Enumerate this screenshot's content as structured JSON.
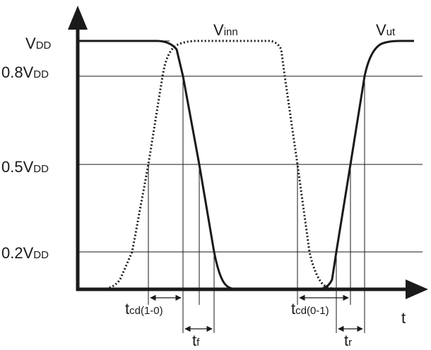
{
  "diagram": {
    "levels": [
      {
        "main": "V",
        "sub": "DD"
      },
      {
        "main": "0.8V",
        "sub": "DD"
      },
      {
        "main": "0.5V",
        "sub": "DD"
      },
      {
        "main": "0.2V",
        "sub": "DD"
      }
    ],
    "signals": {
      "input": {
        "main": "V",
        "sub": "inn"
      },
      "output": {
        "main": "V",
        "sub": "ut"
      }
    },
    "time_axis": "t",
    "intervals": {
      "tcd_fall": {
        "main": "t",
        "sub": "cd(1-0)"
      },
      "tf": {
        "main": "t",
        "sub": "f"
      },
      "tcd_rise": {
        "main": "t",
        "sub": "cd(0-1)"
      },
      "tr": {
        "main": "t",
        "sub": "r"
      }
    }
  }
}
